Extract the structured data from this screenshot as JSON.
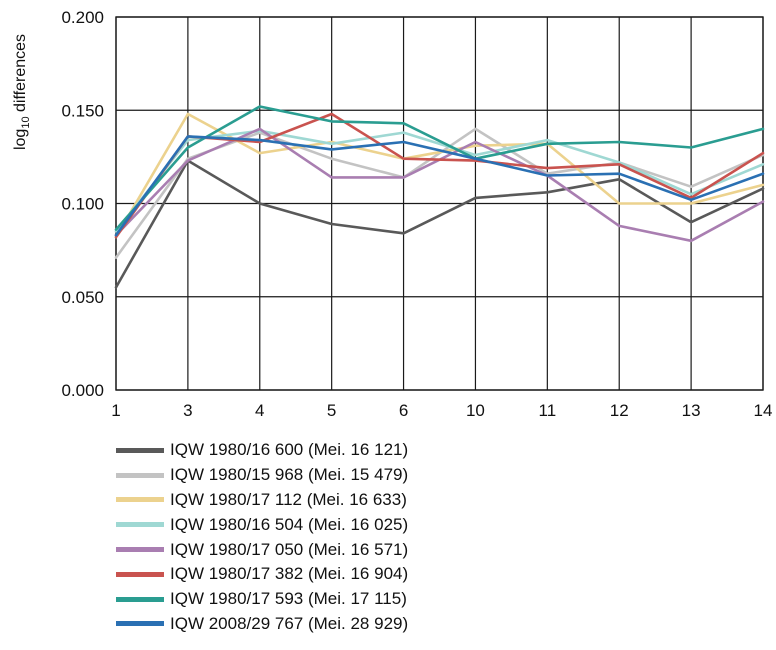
{
  "chart_data": {
    "type": "line",
    "title": "",
    "xlabel": "",
    "ylabel": "log10 differences",
    "ylabel_main": "log",
    "ylabel_sub": "10",
    "ylabel_rest": " differences",
    "categories": [
      "1",
      "3",
      "4",
      "5",
      "6",
      "10",
      "11",
      "12",
      "13",
      "14"
    ],
    "ylim": [
      0,
      0.2
    ],
    "yticks": [
      "0.000",
      "0.050",
      "0.100",
      "0.150",
      "0.200"
    ],
    "grid": true,
    "legend_position": "bottom",
    "series": [
      {
        "name": "IQW 1980/16 600 (Mei. 16 121)",
        "color": "#595959",
        "values": [
          0.055,
          0.123,
          0.1,
          0.089,
          0.084,
          0.103,
          0.106,
          0.113,
          0.09,
          0.108
        ]
      },
      {
        "name": "IQW 1980/15 968 (Mei. 15 479)",
        "color": "#c3c3c3",
        "values": [
          0.071,
          0.124,
          0.138,
          0.124,
          0.114,
          0.14,
          0.116,
          0.122,
          0.109,
          0.126
        ]
      },
      {
        "name": "IQW 1980/17 112 (Mei. 16 633)",
        "color": "#ecd28e",
        "values": [
          0.082,
          0.148,
          0.127,
          0.133,
          0.124,
          0.131,
          0.132,
          0.1,
          0.1,
          0.11
        ]
      },
      {
        "name": "IQW 1980/16 504 (Mei. 16 025)",
        "color": "#9fd8d3",
        "values": [
          0.085,
          0.134,
          0.139,
          0.132,
          0.138,
          0.126,
          0.134,
          0.122,
          0.105,
          0.121
        ]
      },
      {
        "name": "IQW 1980/17 050 (Mei. 16 571)",
        "color": "#a97eb1",
        "values": [
          0.083,
          0.123,
          0.14,
          0.114,
          0.114,
          0.133,
          0.115,
          0.088,
          0.08,
          0.101
        ]
      },
      {
        "name": "IQW 1980/17 382 (Mei. 16 904)",
        "color": "#c9534f",
        "values": [
          0.082,
          0.136,
          0.133,
          0.148,
          0.124,
          0.123,
          0.119,
          0.121,
          0.103,
          0.127
        ]
      },
      {
        "name": "IQW 1980/17 593 (Mei. 17 115)",
        "color": "#2a9d91",
        "values": [
          0.086,
          0.13,
          0.152,
          0.144,
          0.143,
          0.124,
          0.132,
          0.133,
          0.13,
          0.14
        ]
      },
      {
        "name": "IQW 2008/29 767 (Mei. 28 929)",
        "color": "#2a70b3",
        "values": [
          0.083,
          0.136,
          0.134,
          0.129,
          0.133,
          0.124,
          0.115,
          0.116,
          0.102,
          0.116
        ]
      }
    ]
  }
}
